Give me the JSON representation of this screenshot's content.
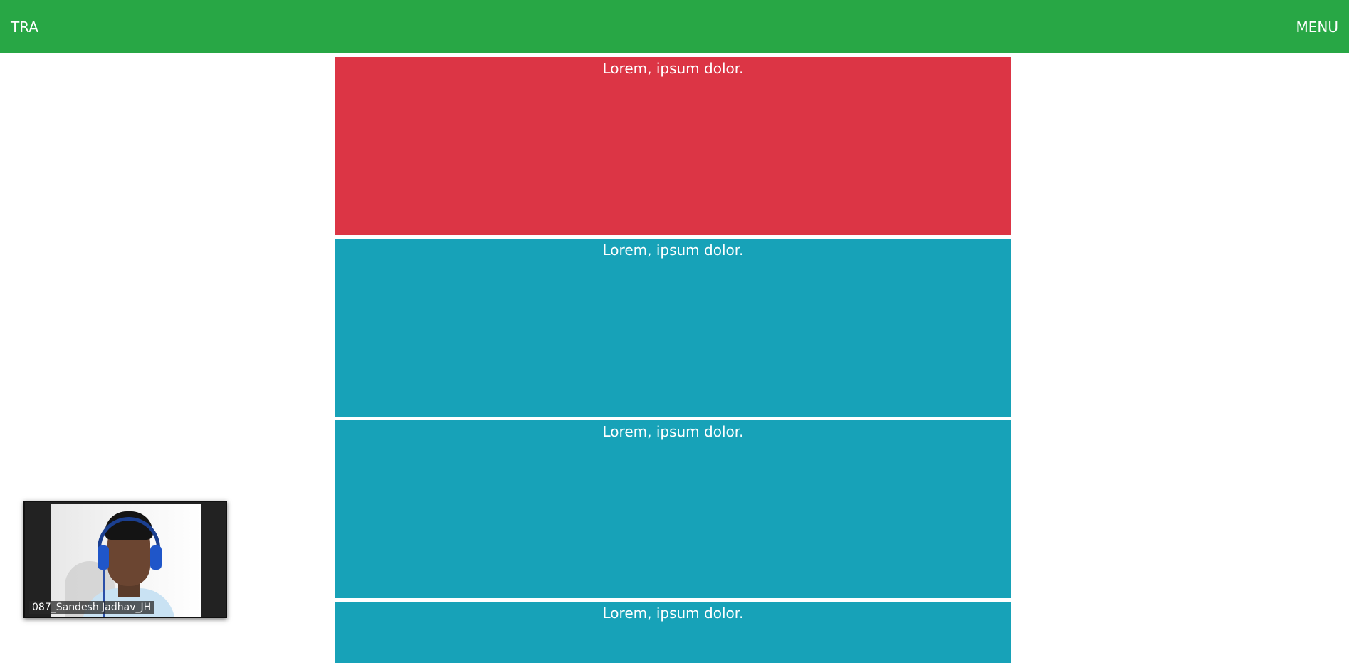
{
  "navbar": {
    "brand": "TRA",
    "menu": "MENU",
    "color": "#28a745"
  },
  "blocks": [
    {
      "text": "Lorem, ipsum dolor.",
      "color": "#dc3545"
    },
    {
      "text": "Lorem, ipsum dolor.",
      "color": "#17a2b8"
    },
    {
      "text": "Lorem, ipsum dolor.",
      "color": "#17a2b8"
    },
    {
      "text": "Lorem, ipsum dolor.",
      "color": "#17a2b8"
    }
  ],
  "video": {
    "participant_name": "087_Sandesh Jadhav_JH"
  }
}
